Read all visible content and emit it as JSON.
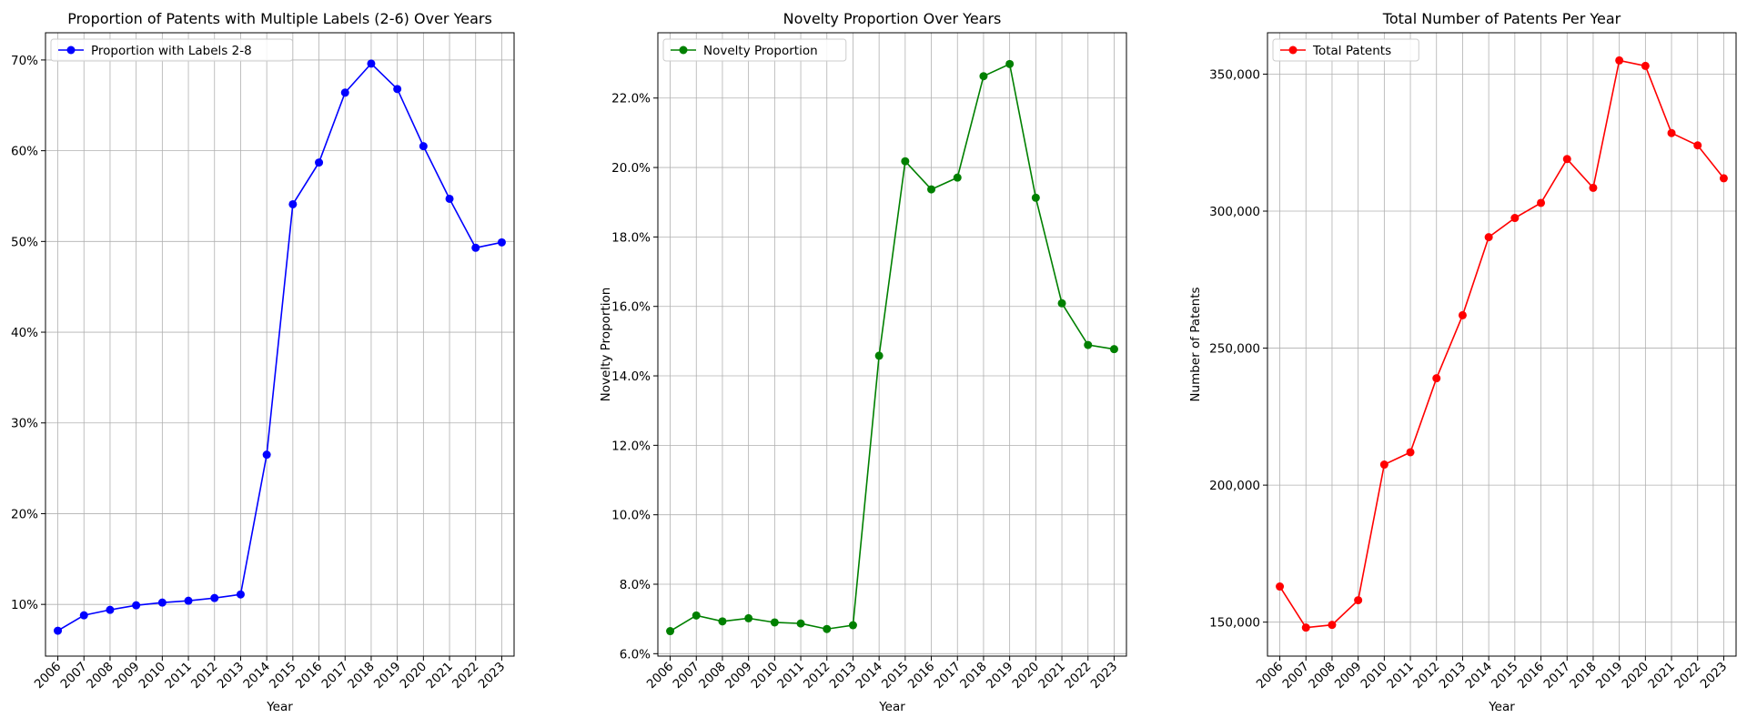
{
  "chart_data": [
    {
      "type": "line",
      "title": "Proportion of Patents with Multiple Labels (2-6) Over Years",
      "xlabel": "Year",
      "ylabel": "",
      "x": [
        "2006",
        "2007",
        "2008",
        "2009",
        "2010",
        "2011",
        "2012",
        "2013",
        "2014",
        "2015",
        "2016",
        "2017",
        "2018",
        "2019",
        "2020",
        "2021",
        "2022",
        "2023"
      ],
      "y_ticks": [
        0.1,
        0.2,
        0.3,
        0.4,
        0.5,
        0.6,
        0.7
      ],
      "y_tick_labels": [
        "10%",
        "20%",
        "30%",
        "40%",
        "50%",
        "60%",
        "70%"
      ],
      "ylim": [
        0.043,
        0.73
      ],
      "grid": true,
      "legend": "upper-left",
      "series": [
        {
          "name": "Proportion with Labels 2-8",
          "color": "#0000ff",
          "marker": "circle",
          "values": [
            0.071,
            0.088,
            0.094,
            0.099,
            0.102,
            0.104,
            0.107,
            0.111,
            0.265,
            0.541,
            0.587,
            0.664,
            0.696,
            0.668,
            0.605,
            0.547,
            0.493,
            0.499
          ]
        }
      ]
    },
    {
      "type": "line",
      "title": "Novelty Proportion Over Years",
      "xlabel": "Year",
      "ylabel": "Novelty Proportion",
      "x": [
        "2006",
        "2007",
        "2008",
        "2009",
        "2010",
        "2011",
        "2012",
        "2013",
        "2014",
        "2015",
        "2016",
        "2017",
        "2018",
        "2019",
        "2020",
        "2021",
        "2022",
        "2023"
      ],
      "y_ticks": [
        0.06,
        0.08,
        0.1,
        0.12,
        0.14,
        0.16,
        0.18,
        0.2,
        0.22
      ],
      "y_tick_labels": [
        "6.0%",
        "8.0%",
        "10.0%",
        "12.0%",
        "14.0%",
        "16.0%",
        "18.0%",
        "20.0%",
        "22.0%"
      ],
      "ylim": [
        0.0593,
        0.2388
      ],
      "grid": true,
      "legend": "upper-left",
      "series": [
        {
          "name": "Novelty Proportion",
          "color": "#008000",
          "marker": "circle",
          "values": [
            0.0665,
            0.071,
            0.0693,
            0.0702,
            0.069,
            0.0687,
            0.0671,
            0.0682,
            0.1458,
            0.2018,
            0.1937,
            0.1971,
            0.2263,
            0.2298,
            0.1913,
            0.1609,
            0.1489,
            0.1477
          ]
        }
      ]
    },
    {
      "type": "line",
      "title": "Total Number of Patents Per Year",
      "xlabel": "Year",
      "ylabel": "Number of Patents",
      "x": [
        "2006",
        "2007",
        "2008",
        "2009",
        "2010",
        "2011",
        "2012",
        "2013",
        "2014",
        "2015",
        "2016",
        "2017",
        "2018",
        "2019",
        "2020",
        "2021",
        "2022",
        "2023"
      ],
      "y_ticks": [
        150000,
        200000,
        250000,
        300000,
        350000
      ],
      "y_tick_labels": [
        "150,000",
        "200,000",
        "250,000",
        "300,000",
        "350,000"
      ],
      "ylim": [
        137600,
        365100
      ],
      "grid": true,
      "legend": "upper-left",
      "series": [
        {
          "name": "Total Patents",
          "color": "#ff0000",
          "marker": "circle",
          "values": [
            163000,
            148000,
            149000,
            158000,
            207500,
            212000,
            239000,
            262000,
            290500,
            297500,
            303000,
            319000,
            308500,
            355000,
            353000,
            328500,
            324000,
            312000
          ]
        }
      ]
    }
  ]
}
